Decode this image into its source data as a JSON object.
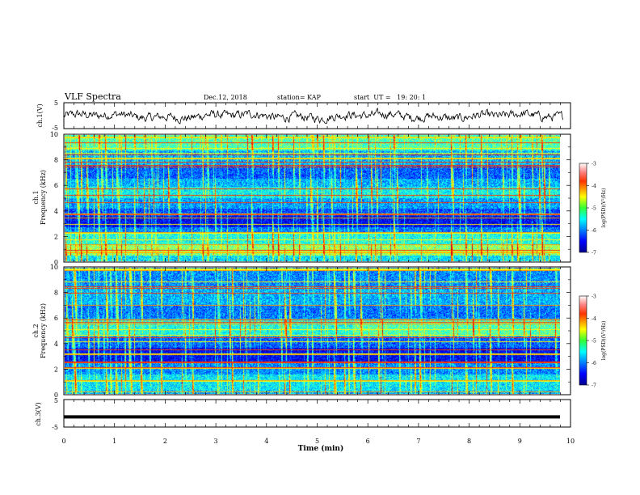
{
  "header": {
    "title": "VLF Spectra",
    "date": "Dec.12, 2018",
    "station": "station= KAP",
    "start_ut": "start  UT =   19: 20: 1"
  },
  "chart_data": [
    {
      "id": "ch1-waveform",
      "type": "line",
      "ylabel": "ch.1(V)",
      "yticks": [
        "5",
        "-5"
      ],
      "ylim": [
        -5,
        5
      ],
      "xlim": [
        0,
        10
      ]
    },
    {
      "id": "ch1-spectrogram",
      "type": "heatmap",
      "ylabel": "ch.1\nFrequency (kHz)",
      "ylabel_lines": [
        "ch.1",
        "Frequency (kHz)"
      ],
      "yticks": [
        "0",
        "2",
        "4",
        "6",
        "8",
        "10"
      ],
      "ylim": [
        0,
        10
      ],
      "xlim": [
        0,
        9.85
      ],
      "colorbar": {
        "label": "log(PSD)(V²/Hz)",
        "ticks": [
          "-3",
          "-4",
          "-5",
          "-6",
          "-7"
        ],
        "range": [
          -7,
          -3
        ]
      }
    },
    {
      "id": "ch2-spectrogram",
      "type": "heatmap",
      "ylabel": "ch.2\nFrequency (kHz)",
      "ylabel_lines": [
        "ch.2",
        "Frequency (kHz)"
      ],
      "yticks": [
        "0",
        "2",
        "4",
        "6",
        "8",
        "10"
      ],
      "ylim": [
        0,
        10
      ],
      "xlim": [
        0,
        9.85
      ],
      "colorbar": {
        "label": "log(PSD)(V²/Hz)",
        "ticks": [
          "-3",
          "-4",
          "-5",
          "-6",
          "-7"
        ],
        "range": [
          -7,
          -3
        ]
      }
    },
    {
      "id": "ch3-waveform",
      "type": "line",
      "ylabel": "ch.3(V)",
      "yticks": [
        "5",
        "-5"
      ],
      "ylim": [
        -5,
        5
      ],
      "xlim": [
        0,
        10
      ],
      "constant_value": -1.3
    }
  ],
  "xaxis": {
    "label": "Time (min)",
    "ticks": [
      "0",
      "1",
      "2",
      "3",
      "4",
      "5",
      "6",
      "7",
      "8",
      "9",
      "10"
    ],
    "range": [
      0,
      10
    ]
  }
}
